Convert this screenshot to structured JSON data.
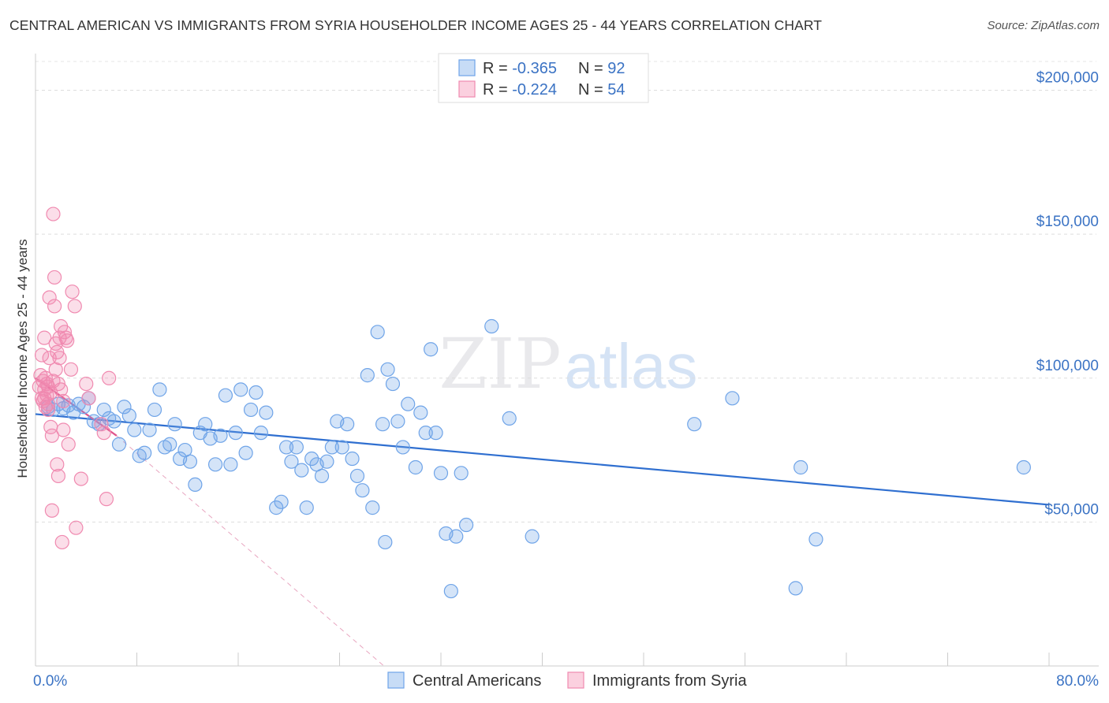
{
  "header": {
    "title": "CENTRAL AMERICAN VS IMMIGRANTS FROM SYRIA HOUSEHOLDER INCOME AGES 25 - 44 YEARS CORRELATION CHART",
    "source": "Source: ZipAtlas.com"
  },
  "watermark": {
    "zip": "ZIP",
    "atlas": "atlas"
  },
  "legend": {
    "rows": [
      {
        "r_label": "R = ",
        "r_value": "-0.365",
        "n_label": "N = ",
        "n_value": "92",
        "color": "#6fa4e8"
      },
      {
        "r_label": "R = ",
        "r_value": "-0.224",
        "n_label": "N = ",
        "n_value": "54",
        "color": "#f08ab0"
      }
    ]
  },
  "chart_data": {
    "type": "scatter",
    "title": "CENTRAL AMERICAN VS IMMIGRANTS FROM SYRIA HOUSEHOLDER INCOME AGES 25 - 44 YEARS CORRELATION CHART",
    "xlabel": "",
    "ylabel": "Householder Income Ages 25 - 44 years",
    "xlim": [
      0,
      80
    ],
    "ylim": [
      0,
      210000
    ],
    "x_tick_labels": [
      "0.0%",
      "80.0%"
    ],
    "y_ticks": [
      50000,
      100000,
      150000,
      200000
    ],
    "y_tick_labels": [
      "$50,000",
      "$100,000",
      "$150,000",
      "$200,000"
    ],
    "grid": "horizontal dashed",
    "legend_position": "top-center",
    "series": [
      {
        "name": "Central Americans",
        "color": "#6fa4e8",
        "line_color": "#2f6fd0",
        "trend": {
          "x": [
            0,
            80
          ],
          "y": [
            87500,
            56000
          ]
        },
        "points": [
          [
            1.0,
            90000
          ],
          [
            1.4,
            89000
          ],
          [
            1.8,
            91000
          ],
          [
            2.2,
            89500
          ],
          [
            2.6,
            90500
          ],
          [
            3.0,
            88000
          ],
          [
            3.4,
            91000
          ],
          [
            3.8,
            90000
          ],
          [
            4.2,
            93000
          ],
          [
            4.6,
            85000
          ],
          [
            5.0,
            84000
          ],
          [
            5.4,
            89000
          ],
          [
            5.8,
            86000
          ],
          [
            6.2,
            85000
          ],
          [
            6.6,
            77000
          ],
          [
            7.0,
            90000
          ],
          [
            7.4,
            87000
          ],
          [
            7.8,
            82000
          ],
          [
            8.2,
            73000
          ],
          [
            8.6,
            74000
          ],
          [
            9.0,
            82000
          ],
          [
            9.4,
            89000
          ],
          [
            9.8,
            96000
          ],
          [
            10.2,
            76000
          ],
          [
            10.6,
            77000
          ],
          [
            11.0,
            84000
          ],
          [
            11.4,
            72000
          ],
          [
            11.8,
            75000
          ],
          [
            12.2,
            71000
          ],
          [
            12.6,
            63000
          ],
          [
            13.0,
            81000
          ],
          [
            13.4,
            84000
          ],
          [
            13.8,
            79000
          ],
          [
            14.2,
            70000
          ],
          [
            14.6,
            80000
          ],
          [
            15.0,
            94000
          ],
          [
            15.4,
            70000
          ],
          [
            15.8,
            81000
          ],
          [
            16.2,
            96000
          ],
          [
            16.6,
            74000
          ],
          [
            17.0,
            89000
          ],
          [
            17.4,
            95000
          ],
          [
            17.8,
            81000
          ],
          [
            18.2,
            88000
          ],
          [
            19.0,
            55000
          ],
          [
            19.4,
            57000
          ],
          [
            19.8,
            76000
          ],
          [
            20.2,
            71000
          ],
          [
            20.6,
            76000
          ],
          [
            21.0,
            68000
          ],
          [
            21.4,
            55000
          ],
          [
            21.8,
            72000
          ],
          [
            22.2,
            70000
          ],
          [
            22.6,
            66000
          ],
          [
            23.0,
            71000
          ],
          [
            23.4,
            76000
          ],
          [
            23.8,
            85000
          ],
          [
            24.2,
            76000
          ],
          [
            24.6,
            84000
          ],
          [
            25.0,
            72000
          ],
          [
            25.4,
            66000
          ],
          [
            25.8,
            61000
          ],
          [
            26.2,
            101000
          ],
          [
            26.6,
            55000
          ],
          [
            27.0,
            116000
          ],
          [
            27.4,
            84000
          ],
          [
            27.6,
            43000
          ],
          [
            27.8,
            103000
          ],
          [
            28.2,
            98000
          ],
          [
            28.6,
            85000
          ],
          [
            29.0,
            76000
          ],
          [
            29.4,
            91000
          ],
          [
            30.0,
            69000
          ],
          [
            30.4,
            88000
          ],
          [
            30.8,
            81000
          ],
          [
            31.2,
            110000
          ],
          [
            31.6,
            81000
          ],
          [
            32.0,
            67000
          ],
          [
            32.4,
            46000
          ],
          [
            32.8,
            26000
          ],
          [
            33.2,
            45000
          ],
          [
            33.6,
            67000
          ],
          [
            34.0,
            49000
          ],
          [
            36.0,
            118000
          ],
          [
            37.4,
            86000
          ],
          [
            39.2,
            45000
          ],
          [
            52.0,
            84000
          ],
          [
            55.0,
            93000
          ],
          [
            60.0,
            27000
          ],
          [
            60.4,
            69000
          ],
          [
            61.6,
            44000
          ],
          [
            78.0,
            69000
          ]
        ]
      },
      {
        "name": "Immigrants from Syria",
        "color": "#f08ab0",
        "line_color": "#e0548c",
        "trend": {
          "x": [
            0,
            6.4
          ],
          "y": [
            100000,
            80000
          ]
        },
        "trend_extension": {
          "x": [
            6.4,
            27.5
          ],
          "y": [
            80000,
            0
          ]
        },
        "points": [
          [
            0.3,
            97000
          ],
          [
            0.4,
            101000
          ],
          [
            0.5,
            93000
          ],
          [
            0.5,
            108000
          ],
          [
            0.6,
            92000
          ],
          [
            0.6,
            99000
          ],
          [
            0.7,
            96000
          ],
          [
            0.7,
            114000
          ],
          [
            0.8,
            90000
          ],
          [
            0.8,
            100000
          ],
          [
            0.9,
            94000
          ],
          [
            0.9,
            98000
          ],
          [
            1.0,
            91000
          ],
          [
            1.0,
            97000
          ],
          [
            1.1,
            107000
          ],
          [
            1.1,
            128000
          ],
          [
            1.2,
            95000
          ],
          [
            1.2,
            83000
          ],
          [
            1.3,
            80000
          ],
          [
            1.3,
            54000
          ],
          [
            1.4,
            99000
          ],
          [
            1.4,
            157000
          ],
          [
            1.5,
            135000
          ],
          [
            1.5,
            125000
          ],
          [
            1.6,
            112000
          ],
          [
            1.6,
            103000
          ],
          [
            1.7,
            109000
          ],
          [
            1.7,
            70000
          ],
          [
            1.8,
            66000
          ],
          [
            1.8,
            98000
          ],
          [
            1.9,
            107000
          ],
          [
            1.9,
            114000
          ],
          [
            2.0,
            118000
          ],
          [
            2.0,
            96000
          ],
          [
            2.1,
            43000
          ],
          [
            2.2,
            82000
          ],
          [
            2.3,
            116000
          ],
          [
            2.4,
            114000
          ],
          [
            2.5,
            113000
          ],
          [
            2.6,
            77000
          ],
          [
            2.8,
            103000
          ],
          [
            2.9,
            130000
          ],
          [
            3.1,
            125000
          ],
          [
            3.2,
            48000
          ],
          [
            3.6,
            65000
          ],
          [
            4.0,
            98000
          ],
          [
            4.2,
            93000
          ],
          [
            5.2,
            84000
          ],
          [
            5.4,
            81000
          ],
          [
            5.6,
            58000
          ],
          [
            5.8,
            100000
          ],
          [
            2.2,
            92000
          ],
          [
            1.0,
            89000
          ],
          [
            0.7,
            93000
          ]
        ]
      }
    ]
  }
}
